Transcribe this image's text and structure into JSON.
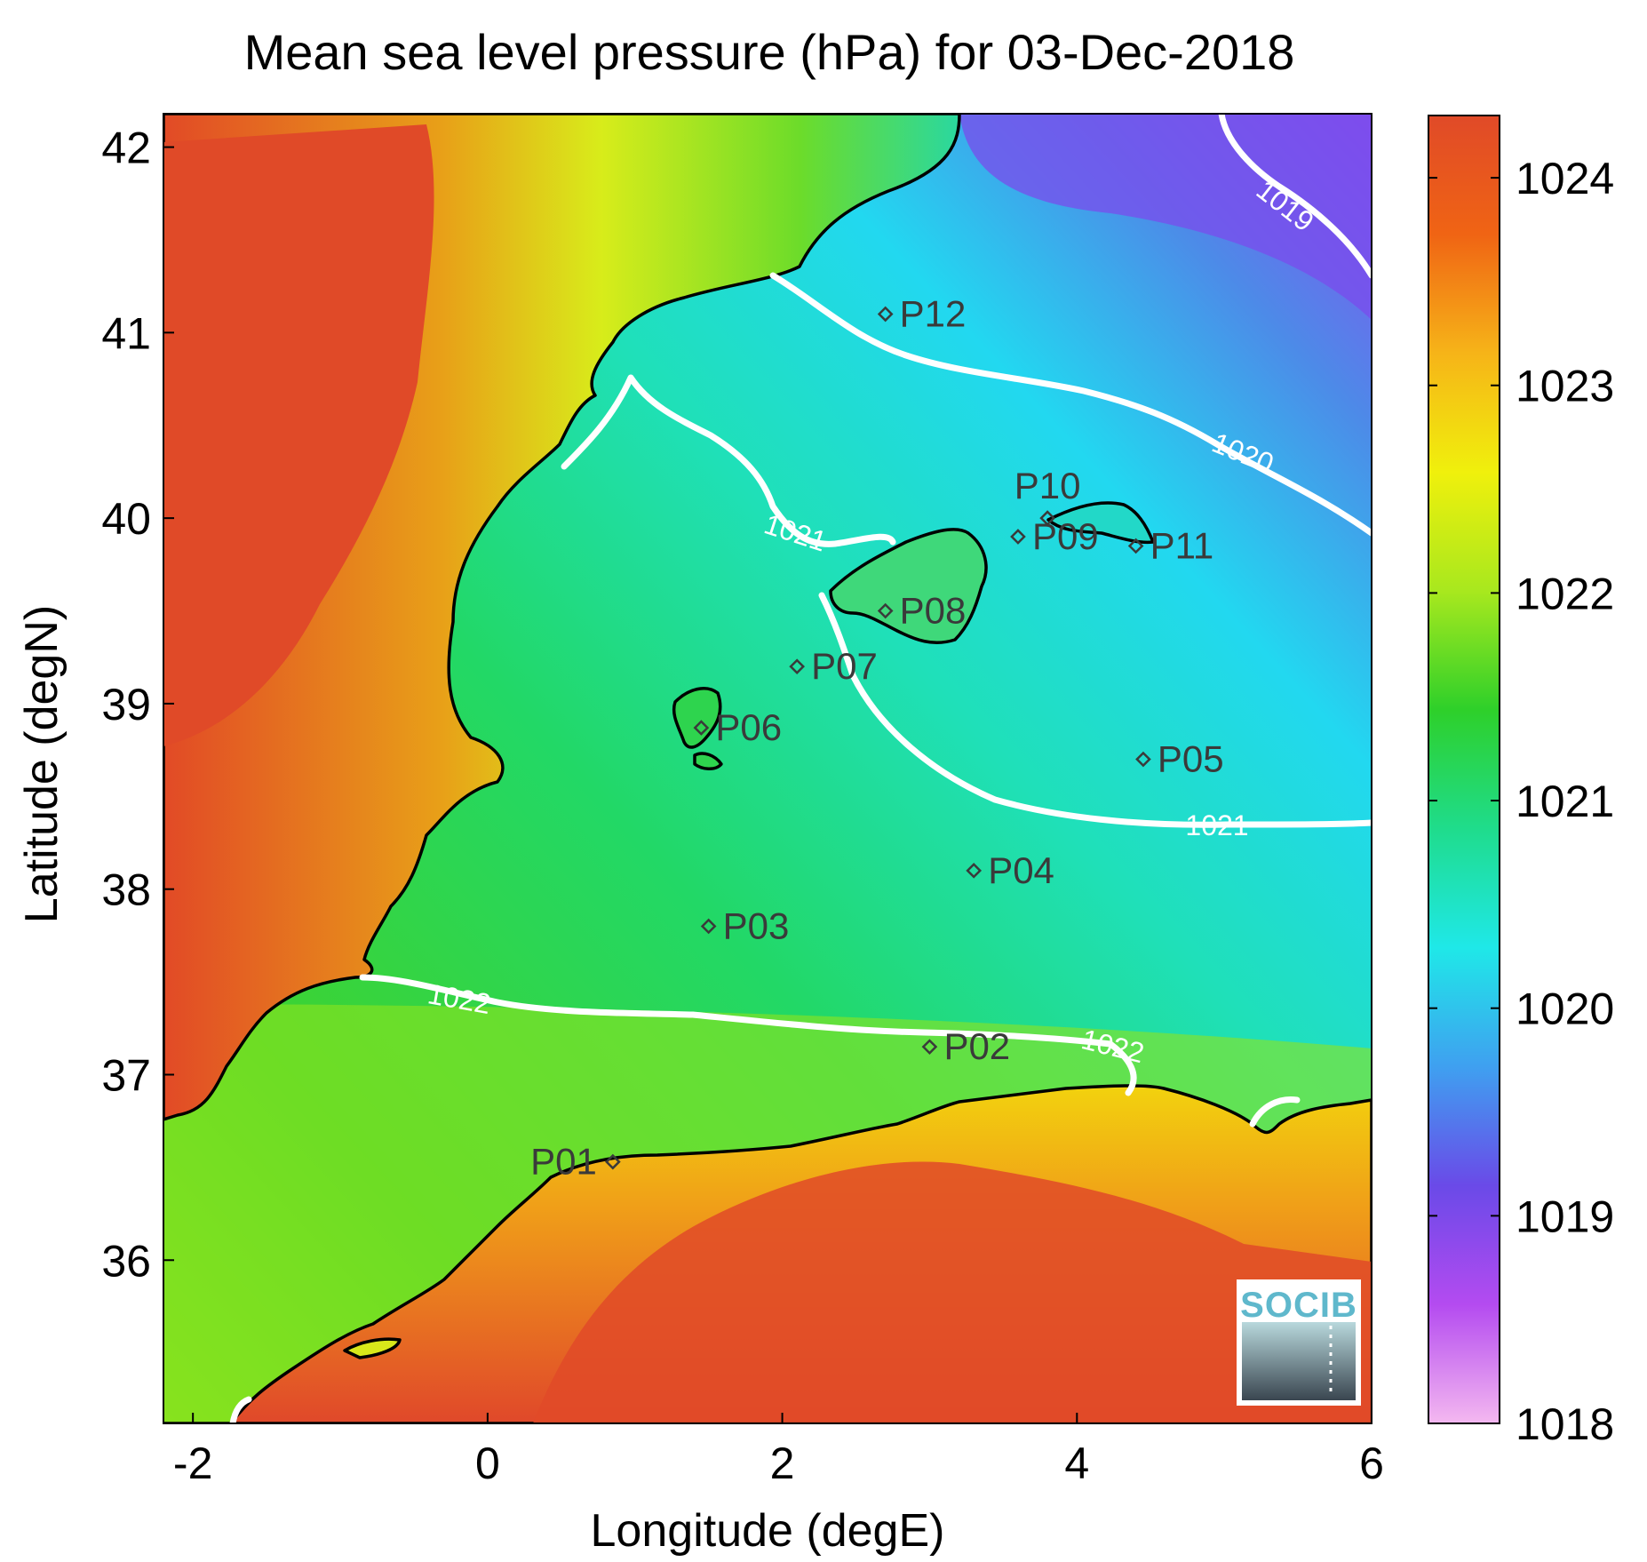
{
  "map": {
    "title": "Mean sea level pressure (hPa) for 03-Dec-2018",
    "xlabel": "Longitude (degE)",
    "ylabel": "Latitude (degN)",
    "x_ticks": [
      "-2",
      "0",
      "2",
      "4",
      "6"
    ],
    "y_ticks": [
      "42",
      "41",
      "40",
      "39",
      "38",
      "37",
      "36"
    ],
    "colorbar": {
      "ticks": [
        "1024",
        "1023",
        "1022",
        "1021",
        "1020",
        "1019",
        "1018"
      ],
      "range": [
        1018,
        1024.3
      ],
      "colors": [
        "#f4b8f0",
        "#b44bf0",
        "#6a4ae8",
        "#3fa0f0",
        "#1fe8e8",
        "#1fdc8c",
        "#2ed02a",
        "#a8e81e",
        "#f0f00c",
        "#f6b418",
        "#f06414",
        "#e04a28"
      ]
    },
    "contours": [
      {
        "level": "1019",
        "label": "1019"
      },
      {
        "level": "1020",
        "label": "1020"
      },
      {
        "level": "1021",
        "label": "1021"
      },
      {
        "level": "1021",
        "label": "1021"
      },
      {
        "level": "1022",
        "label": "1022"
      },
      {
        "level": "1022",
        "label": "1022"
      }
    ],
    "stations": [
      {
        "id": "P01",
        "lon": 0.85,
        "lat": 36.53
      },
      {
        "id": "P02",
        "lon": 3.0,
        "lat": 37.15
      },
      {
        "id": "P03",
        "lon": 1.5,
        "lat": 37.8
      },
      {
        "id": "P04",
        "lon": 3.3,
        "lat": 38.1
      },
      {
        "id": "P05",
        "lon": 4.45,
        "lat": 38.7
      },
      {
        "id": "P06",
        "lon": 1.45,
        "lat": 38.87
      },
      {
        "id": "P07",
        "lon": 2.1,
        "lat": 39.2
      },
      {
        "id": "P08",
        "lon": 2.7,
        "lat": 39.5
      },
      {
        "id": "P09",
        "lon": 3.6,
        "lat": 39.9
      },
      {
        "id": "P10",
        "lon": 3.8,
        "lat": 40.0
      },
      {
        "id": "P11",
        "lon": 4.4,
        "lat": 39.85
      },
      {
        "id": "P12",
        "lon": 2.7,
        "lat": 41.1
      }
    ],
    "logo": "SOCIB"
  }
}
